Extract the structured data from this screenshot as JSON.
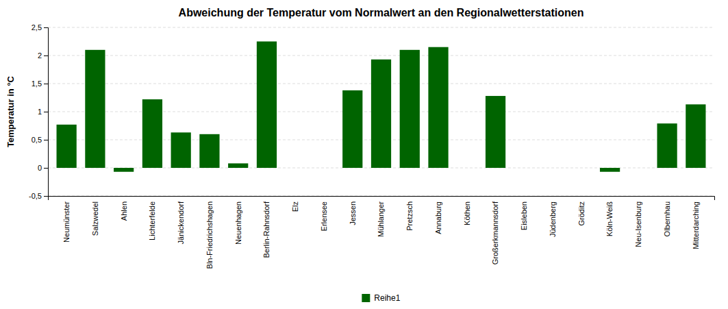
{
  "chart_data": {
    "type": "bar",
    "title": "Abweichung der Temperatur vom Normalwert an den Regionalwetterstationen",
    "y_label": "Temperatur in °C",
    "categories": [
      "Neumünster",
      "Salzwedel",
      "Ahlen",
      "Lichterfelde",
      "Jänickendorf",
      "Bln-Friedrichshagen",
      "Neuenhagen",
      "Berlin-Rahnsdorf",
      "Elz",
      "Erlensee",
      "Jessen",
      "Mühlanger",
      "Pretzsch",
      "Annaburg",
      "Köthen",
      "Großerkmannsdorf",
      "Eisleben",
      "Jüdenberg",
      "Gröditz",
      "Köln-Weiß",
      "Neu-Isenburg",
      "Olbernhau",
      "Mitterdarching"
    ],
    "series": [
      {
        "name": "Reihe1",
        "color": "#006400",
        "values": [
          0.77,
          2.1,
          -0.07,
          1.22,
          0.63,
          0.6,
          0.08,
          2.25,
          0.0,
          0.0,
          1.38,
          1.93,
          2.1,
          2.15,
          0.0,
          1.28,
          0.0,
          0.0,
          0.0,
          -0.07,
          0.0,
          0.79,
          1.13
        ]
      }
    ],
    "ylim": [
      -0.5,
      2.5
    ],
    "yticks": [
      {
        "value": -0.5,
        "label": "-0,5"
      },
      0,
      {
        "value": 0.5,
        "label": "0,5"
      },
      1,
      {
        "value": 1.5,
        "label": "1,5"
      },
      2,
      {
        "value": 2.5,
        "label": "2,5"
      }
    ],
    "grid": true,
    "legend": "bottom"
  }
}
